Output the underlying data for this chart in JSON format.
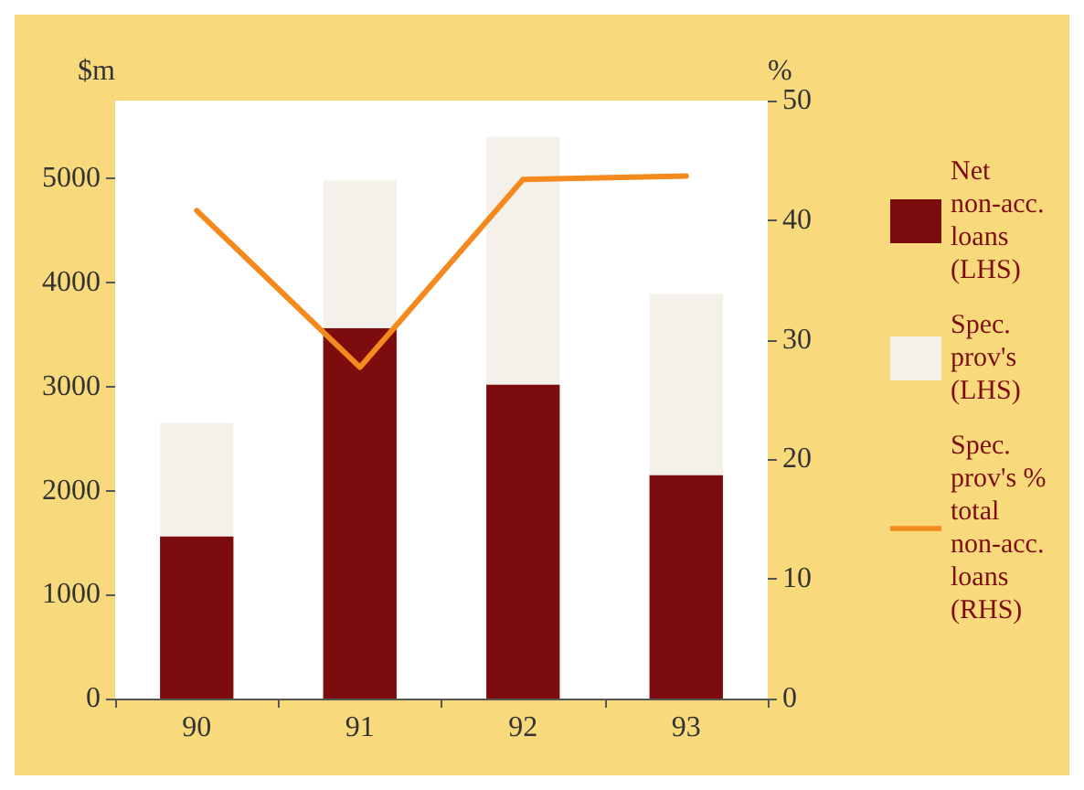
{
  "chart_data": {
    "type": "bar",
    "stacked": true,
    "categories": [
      "90",
      "91",
      "92",
      "93"
    ],
    "ylabel": "$m",
    "y2label": "%",
    "ylim": [
      0,
      5750
    ],
    "yticks": [
      0,
      1000,
      2000,
      3000,
      4000,
      5000
    ],
    "y2lim": [
      0,
      50
    ],
    "y2ticks": [
      0,
      10,
      20,
      30,
      40,
      50
    ],
    "series": [
      {
        "name": "Net non-acc. loans (LHS)",
        "color": "#7d0c0e",
        "values": [
          1560,
          3560,
          3020,
          2150
        ]
      },
      {
        "name": "Spec. prov's (LHS)",
        "color": "#f4f0ea",
        "values": [
          1090,
          1420,
          2380,
          1740
        ]
      },
      {
        "name": "Spec. prov's % total non-acc. loans (RHS)",
        "type": "line",
        "axis": "y2",
        "color": "#f48a1e",
        "values": [
          40.8,
          27.7,
          43.4,
          43.7
        ]
      }
    ],
    "grid": false,
    "legend": "right",
    "marker": "none"
  }
}
